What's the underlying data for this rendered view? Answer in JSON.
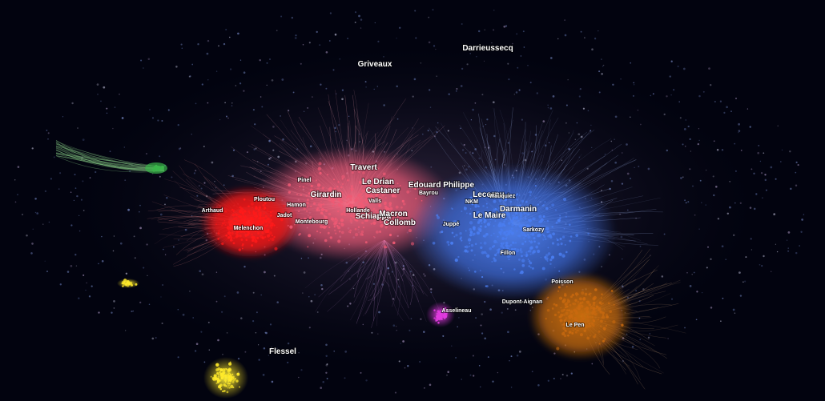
{
  "graph": {
    "background": "#02030f",
    "clusters": [
      {
        "id": "melenchon",
        "color": "#ff1a1a"
      },
      {
        "id": "macron",
        "color": "#f05a74"
      },
      {
        "id": "lr",
        "color": "#4a7df0"
      },
      {
        "id": "rn",
        "color": "#c8690f"
      },
      {
        "id": "asselineau",
        "color": "#e23be0"
      },
      {
        "id": "flessel",
        "color": "#ffea2a"
      },
      {
        "id": "green",
        "color": "#3ab54a"
      }
    ],
    "labels": [
      {
        "text": "Darrieussecq",
        "tier": "medium"
      },
      {
        "text": "Griveaux",
        "tier": "medium"
      },
      {
        "text": "Travert",
        "tier": "medium"
      },
      {
        "text": "Le Drian",
        "tier": "medium"
      },
      {
        "text": "Castaner",
        "tier": "medium"
      },
      {
        "text": "Pinel",
        "tier": "small"
      },
      {
        "text": "Girardin",
        "tier": "medium"
      },
      {
        "text": "Ploutou",
        "tier": "small"
      },
      {
        "text": "Hamon",
        "tier": "small"
      },
      {
        "text": "Arthaud",
        "tier": "small"
      },
      {
        "text": "Jadot",
        "tier": "small"
      },
      {
        "text": "Valls",
        "tier": "small"
      },
      {
        "text": "Hollande",
        "tier": "small"
      },
      {
        "text": "Montebourg",
        "tier": "small"
      },
      {
        "text": "Melenchon",
        "tier": "small"
      },
      {
        "text": "Schiappa",
        "tier": "medium"
      },
      {
        "text": "Macron",
        "tier": "medium"
      },
      {
        "text": "Collomb",
        "tier": "medium"
      },
      {
        "text": "Edouard Philippe",
        "tier": "medium"
      },
      {
        "text": "Bayrou",
        "tier": "small"
      },
      {
        "text": "Lecornu",
        "tier": "medium"
      },
      {
        "text": "NKM",
        "tier": "small"
      },
      {
        "text": "Wauquiez",
        "tier": "small"
      },
      {
        "text": "Darmanin",
        "tier": "medium"
      },
      {
        "text": "Le Maire",
        "tier": "medium"
      },
      {
        "text": "Juppé",
        "tier": "small"
      },
      {
        "text": "Sarkozy",
        "tier": "small"
      },
      {
        "text": "Fillon",
        "tier": "small"
      },
      {
        "text": "Poisson",
        "tier": "small"
      },
      {
        "text": "Dupont-Aignan",
        "tier": "small"
      },
      {
        "text": "Asselineau",
        "tier": "small"
      },
      {
        "text": "Le Pen",
        "tier": "small"
      },
      {
        "text": "Flessel",
        "tier": "medium"
      }
    ]
  }
}
